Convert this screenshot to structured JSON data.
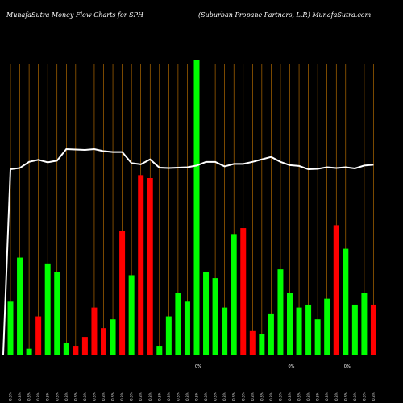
{
  "header": {
    "left": "MunafaSutra  Money  Flow  Charts for SPH",
    "right": "(Suburban  Propane    Partners,  L.P.) MunafaSutra.com"
  },
  "colors": {
    "up": "#00ff00",
    "down": "#ff0000",
    "line": "#ffffff",
    "grid": "#cc7a00",
    "background": "#000000"
  },
  "chart_data": {
    "type": "bar",
    "series": [
      {
        "role": "money_flow_bars",
        "values": [
          18,
          33,
          2,
          13,
          31,
          28,
          4,
          3,
          6,
          16,
          9,
          12,
          42,
          27,
          61,
          60,
          3,
          13,
          21,
          18,
          100,
          28,
          26,
          16,
          41,
          43,
          8,
          7,
          14,
          29,
          21,
          16,
          17,
          12,
          19,
          44,
          36,
          17,
          21,
          17
        ],
        "directions": [
          "up",
          "up",
          "up",
          "down",
          "up",
          "up",
          "up",
          "down",
          "down",
          "down",
          "down",
          "up",
          "down",
          "up",
          "down",
          "down",
          "up",
          "up",
          "up",
          "up",
          "up",
          "up",
          "up",
          "up",
          "up",
          "down",
          "down",
          "up",
          "up",
          "up",
          "up",
          "up",
          "up",
          "up",
          "up",
          "down",
          "up",
          "up",
          "up",
          "down"
        ]
      },
      {
        "role": "price_line",
        "values": [
          17,
          20,
          35,
          40,
          34,
          38,
          66,
          65,
          64,
          66,
          61,
          59,
          59,
          32,
          29,
          41,
          21,
          20,
          21,
          22,
          26,
          35,
          35,
          24,
          30,
          30,
          35,
          41,
          47,
          35,
          27,
          25,
          17,
          18,
          22,
          20,
          22,
          19,
          26,
          28
        ]
      }
    ],
    "x_labels": [
      "0.8%",
      "0.8%",
      "0.8%",
      "0.8%",
      "0.8%",
      "0.8%",
      "0.8%",
      "0.8%",
      "0.8%",
      "0.8%",
      "0.8%",
      "0.8%",
      "0.8%",
      "0.8%",
      "0.8%",
      "0.8%",
      "0.8%",
      "0.8%",
      "0.8%",
      "0.8%",
      "0.8%",
      "0.8%",
      "0.8%",
      "0.8%",
      "0.8%",
      "0.8%",
      "0.8%",
      "0.8%",
      "0.8%",
      "0.8%",
      "0.8%",
      "0.8%",
      "0.8%",
      "0.8%",
      "0.8%",
      "0.8%",
      "0.8%",
      "0.8%",
      "0.8%",
      "0.8%"
    ],
    "annotations": [
      "0%",
      "0%",
      "0%"
    ],
    "grid": true,
    "legend": "none"
  }
}
